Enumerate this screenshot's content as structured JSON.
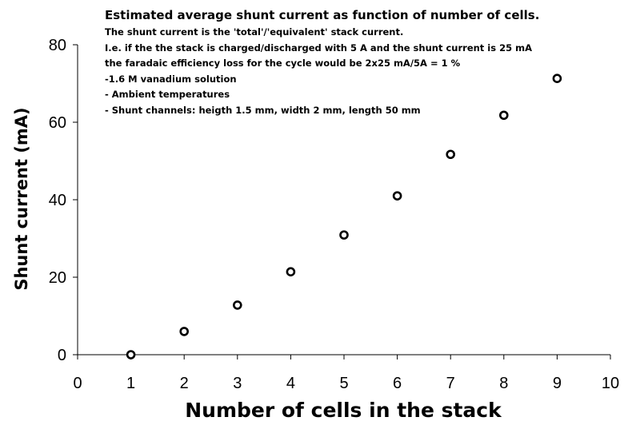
{
  "chart_data": {
    "type": "scatter",
    "title": "Estimated average shunt current as function of number of cells.",
    "annotations": [
      "The shunt current is the 'total'/'equivalent' stack current.",
      "I.e. if the the stack is charged/discharged with 5 A and the shunt current is 25 mA",
      "the faradaic efficiency loss for the cycle would be 2x25 mA/5A = 1 %",
      "-1.6 M vanadium solution",
      "- Ambient temperatures",
      "- Shunt channels: heigth 1.5 mm, width 2 mm, length 50 mm"
    ],
    "xlabel": "Number of cells in the stack",
    "ylabel": "Shunt current (mA)",
    "xlim": [
      0,
      10
    ],
    "ylim": [
      0,
      80
    ],
    "x_ticks": [
      "0",
      "1",
      "2",
      "3",
      "4",
      "5",
      "6",
      "7",
      "8",
      "9",
      "10"
    ],
    "y_ticks": [
      "0",
      "20",
      "40",
      "60",
      "80"
    ],
    "grid": false,
    "legend": "none",
    "marker_color": "#000000",
    "series": [
      {
        "x": [
          1,
          2,
          3,
          4,
          5,
          6,
          7,
          8,
          9
        ],
        "y": [
          0,
          6,
          12.8,
          21.4,
          30.9,
          41,
          51.7,
          61.8,
          71.3
        ]
      }
    ]
  }
}
